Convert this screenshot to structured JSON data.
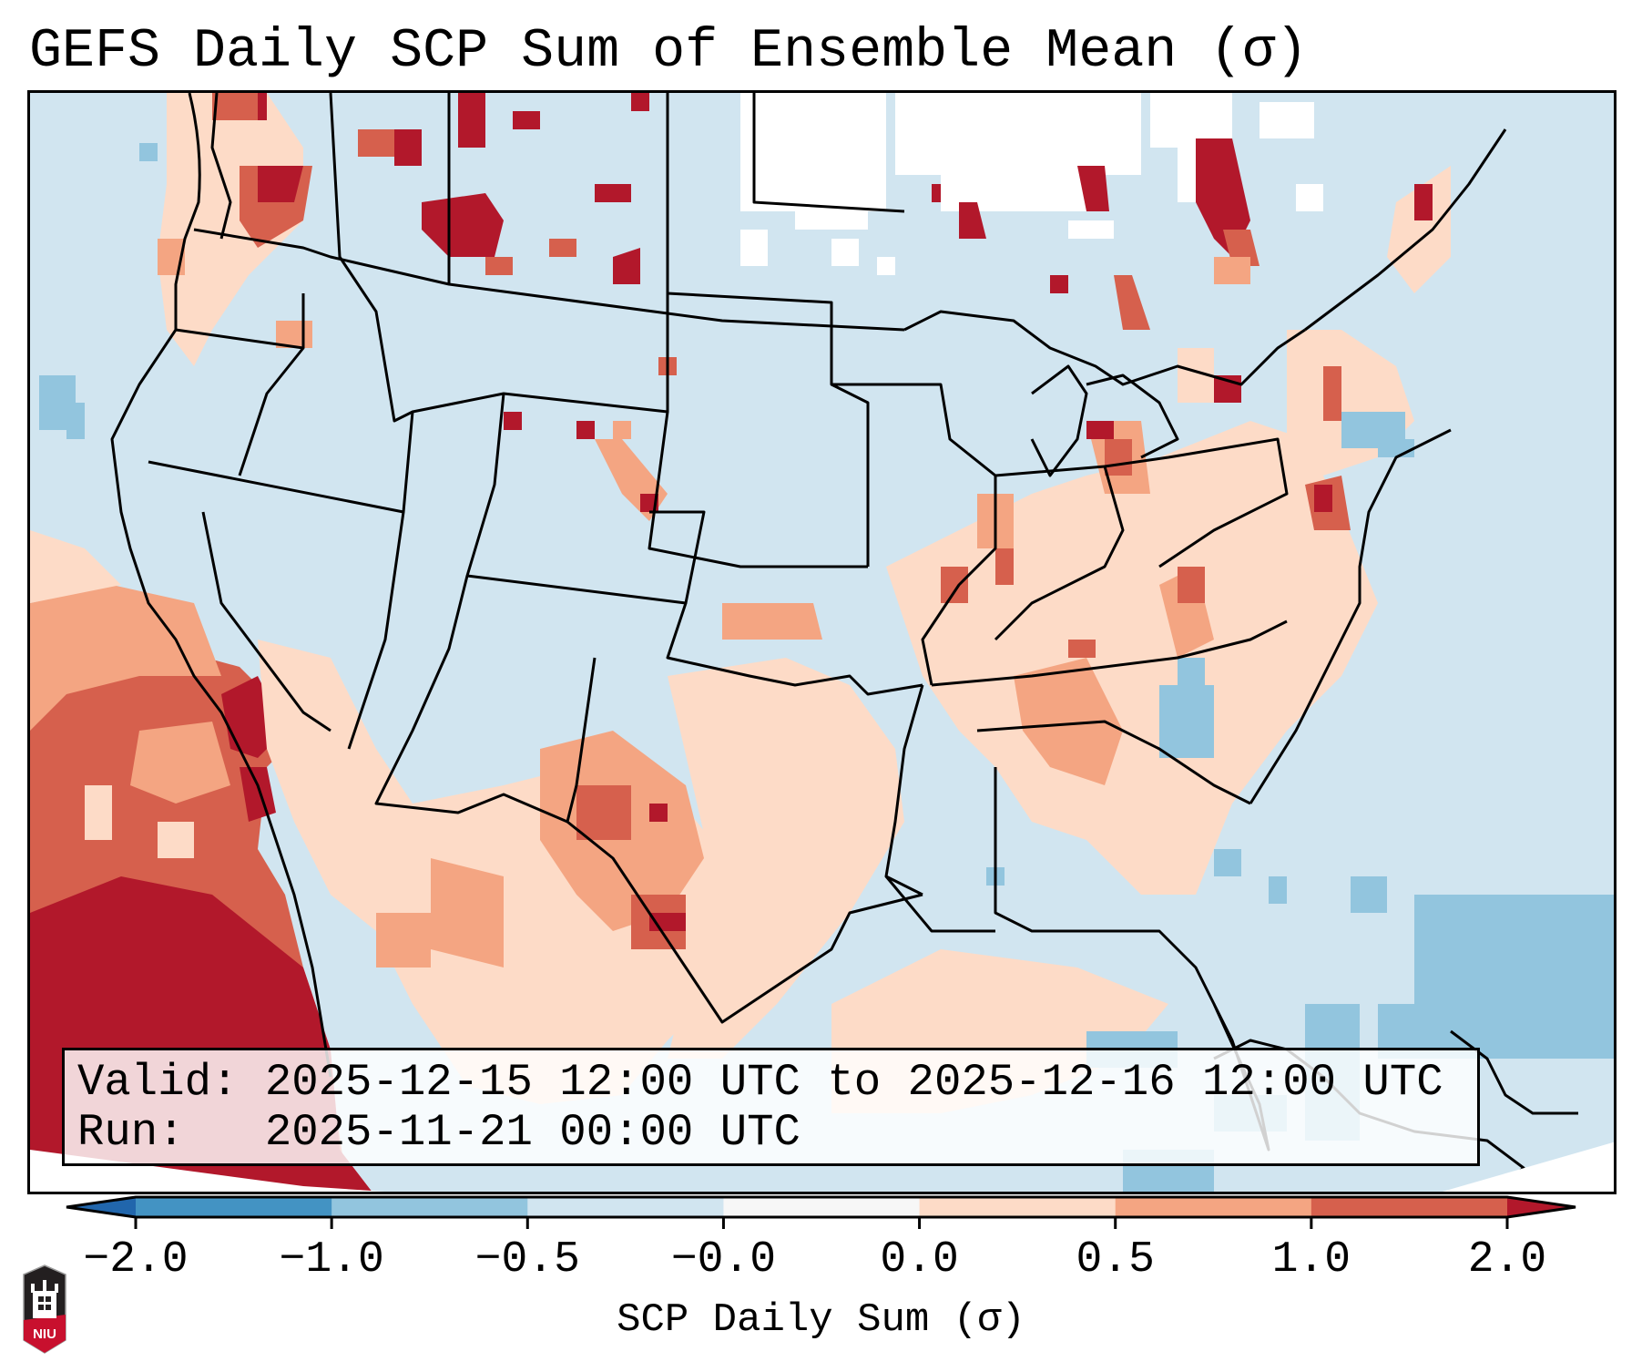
{
  "title": "GEFS Daily SCP Sum of Ensemble Mean (σ)",
  "info": {
    "valid_line": "Valid: 2025-12-15 12:00 UTC to 2025-12-16 12:00 UTC",
    "run_line": "Run:   2025-11-21 00:00 UTC"
  },
  "colorbar": {
    "label": "SCP Daily Sum (σ)",
    "ticks": [
      "-2.0",
      "-1.0",
      "-0.5",
      "-0.0",
      "0.0",
      "0.5",
      "1.0",
      "2.0"
    ],
    "colors": {
      "under": "#2166ac",
      "bins": [
        "#4393c3",
        "#92c5de",
        "#d1e5f0",
        "#f7f7f7",
        "#fddbc7",
        "#f4a582",
        "#d6604d"
      ],
      "over": "#b2182b"
    },
    "extend": "both"
  },
  "map": {
    "region": "Contiguous United States",
    "projection_background": "#ffffff",
    "palette": {
      "light_blue": "#d1e5f0",
      "mid_blue": "#92c5de",
      "blue": "#4393c3",
      "white": "#f7f7f7",
      "peach": "#fddbc7",
      "salmon": "#f4a582",
      "coral": "#d6604d",
      "dark_red": "#b2182b"
    }
  },
  "logo": {
    "text": "NIU",
    "icon": "niu-university-logo-icon"
  }
}
